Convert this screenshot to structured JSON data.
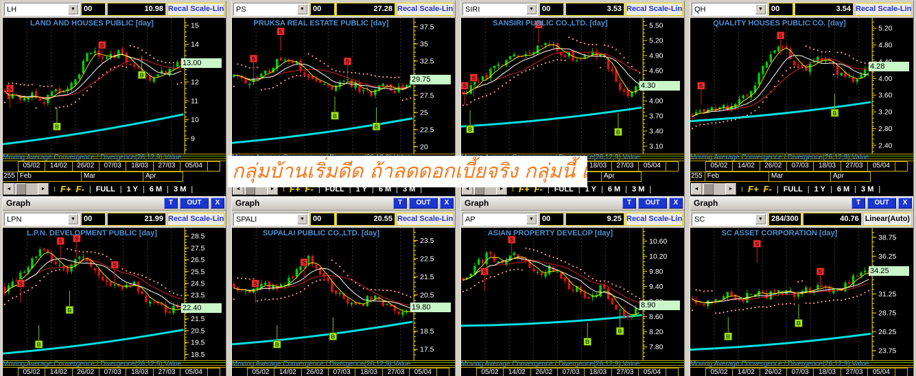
{
  "overlay": {
    "text": "กลุ่มบ้านเริ่มดีด ถ้าลดดอกเบี้ยจริง กลุ่มนี้ เฮเลย"
  },
  "common": {
    "window_title": "Graph",
    "titlebar_buttons": {
      "t": "T",
      "out": "OUT",
      "x": "X"
    },
    "macd_label": "Moving Average Convergence / Divergence(26,12,9),Value",
    "dates": [
      "05/02",
      "14/02",
      "26/02",
      "07/03",
      "18/03",
      "27/03",
      "05/04"
    ],
    "year_label": "255",
    "months": [
      "Feb",
      "Mar",
      "Apr"
    ],
    "fplus": "F+",
    "fminus": "F-",
    "range_buttons": [
      "FULL",
      "1 Y",
      "6 M",
      "3 M"
    ],
    "scroll_left": "◄",
    "scroll_right": "►"
  },
  "colors": {
    "title_blue": "#4a8fd0",
    "link_blue": "#2233cc",
    "price_tag_bg": "#c9f7c9",
    "candle_up": "#00d000",
    "candle_down": "#e01010",
    "ma_white": "#ffffff",
    "ma_yellow": "#e8e800",
    "ma_red": "#d02020",
    "ma_cyan": "#00e0e0",
    "sar_pink": "#ff9595",
    "sell_red": "#e83030",
    "buy_green": "#a6e619",
    "axis_yellow": "#ffe000",
    "overlay_orange": "#f5791e"
  },
  "panels": [
    {
      "symbol": "LH",
      "vol": "00",
      "price": "10.98",
      "scale": "Recal Scale-Linear",
      "scale_link": true,
      "title": "LAND AND HOUSES PUBLIC [day]",
      "y_ticks": [
        "15",
        "14",
        "13",
        "12",
        "11",
        "10",
        "9"
      ],
      "ymin": 8.2,
      "ymax": 15.4,
      "last_label": "13.00",
      "last_value": 13.0,
      "trend": [
        11.4,
        11.1,
        11.35,
        11.0,
        11.45,
        11.7,
        12.7,
        13.9,
        13.1,
        13.6,
        12.8,
        12.35,
        12.2,
        12.75,
        13.0
      ],
      "cyan": [
        0.93,
        0.71
      ],
      "markers": [
        {
          "t": "S",
          "x": 0.04,
          "y": 0.52
        },
        {
          "t": "S",
          "x": 0.55,
          "y": 0.2
        },
        {
          "t": "B",
          "x": 0.3,
          "y": 0.8
        },
        {
          "t": "B",
          "x": 0.77,
          "y": 0.42
        }
      ]
    },
    {
      "symbol": "PS",
      "vol": "00",
      "price": "27.28",
      "scale": "Recal Scale-Linear",
      "scale_link": true,
      "title": "PRUKSA REAL ESTATE PUBLIC [day]",
      "y_ticks": [
        "37.5",
        "35",
        "32.5",
        "30",
        "27.5",
        "25",
        "22.5",
        "20"
      ],
      "ymin": 19.0,
      "ymax": 38.8,
      "last_label": "29.75",
      "last_value": 29.75,
      "trend": [
        30.0,
        29.4,
        30.6,
        31.6,
        33.2,
        31.9,
        30.4,
        29.4,
        28.7,
        29.4,
        28.3,
        27.9,
        28.9,
        28.3,
        29.75
      ],
      "cyan": [
        0.92,
        0.74
      ],
      "markers": [
        {
          "t": "S",
          "x": 0.12,
          "y": 0.3
        },
        {
          "t": "S",
          "x": 0.27,
          "y": 0.1
        },
        {
          "t": "S",
          "x": 0.64,
          "y": 0.32
        },
        {
          "t": "B",
          "x": 0.57,
          "y": 0.72
        },
        {
          "t": "B",
          "x": 0.8,
          "y": 0.8
        }
      ]
    },
    {
      "symbol": "SIRI",
      "vol": "00",
      "price": "3.53",
      "scale": "Recal Scale-Linear",
      "scale_link": true,
      "title": "SANSIRI PUBLIC CO.,LTD. [day]",
      "y_ticks": [
        "5.50",
        "5.20",
        "4.90",
        "4.60",
        "4.00",
        "3.70",
        "3.40",
        "3.10"
      ],
      "ymin": 2.95,
      "ymax": 5.65,
      "last_label": "4.30",
      "last_value": 4.3,
      "trend": [
        4.15,
        4.3,
        4.5,
        4.68,
        4.82,
        4.92,
        5.02,
        5.1,
        5.02,
        4.9,
        4.78,
        4.95,
        4.85,
        4.35,
        4.1,
        4.3
      ],
      "cyan": [
        0.8,
        0.66
      ],
      "markers": [
        {
          "t": "S",
          "x": 0.02,
          "y": 0.5
        },
        {
          "t": "S",
          "x": 0.07,
          "y": 0.44
        },
        {
          "t": "S",
          "x": 0.43,
          "y": 0.05
        },
        {
          "t": "B",
          "x": 0.05,
          "y": 0.82
        },
        {
          "t": "B",
          "x": 0.87,
          "y": 0.84
        }
      ]
    },
    {
      "symbol": "QH",
      "vol": "00",
      "price": "3.54",
      "scale": "Recal Scale-Linear",
      "scale_link": true,
      "title": "QUALITY HOUSES PUBLIC CO. [day]",
      "y_ticks": [
        "5.20",
        "4.80",
        "4.40",
        "4.00",
        "3.60",
        "3.20",
        "2.80",
        "2.40"
      ],
      "ymin": 2.2,
      "ymax": 5.45,
      "last_label": "4.28",
      "last_value": 4.28,
      "trend": [
        3.1,
        3.2,
        3.28,
        3.35,
        3.5,
        3.9,
        4.5,
        4.85,
        4.4,
        4.25,
        4.5,
        4.32,
        3.98,
        3.9,
        4.28
      ],
      "cyan": [
        0.76,
        0.62
      ],
      "markers": [
        {
          "t": "S",
          "x": 0.06,
          "y": 0.5
        },
        {
          "t": "S",
          "x": 0.5,
          "y": 0.13
        },
        {
          "t": "B",
          "x": 0.8,
          "y": 0.7
        }
      ]
    },
    {
      "symbol": "LPN",
      "vol": "00",
      "price": "21.99",
      "scale": "Recal Scale-Linear",
      "scale_link": true,
      "title": "L.P.N. DEVELOPMENT PUBLIC [day]",
      "y_ticks": [
        "28.5",
        "27.5",
        "26.5",
        "25.5",
        "24.5",
        "23.5",
        "22.5",
        "21.5",
        "20.5",
        "19.5",
        "18.5"
      ],
      "ymin": 18.0,
      "ymax": 29.2,
      "last_label": "22.40",
      "last_value": 22.4,
      "trend": [
        24.0,
        24.9,
        26.2,
        27.4,
        26.1,
        25.3,
        26.9,
        25.7,
        24.5,
        24.0,
        24.7,
        23.3,
        22.7,
        22.2,
        22.4
      ],
      "cyan": [
        0.95,
        0.77
      ],
      "markers": [
        {
          "t": "S",
          "x": 0.1,
          "y": 0.42
        },
        {
          "t": "S",
          "x": 0.32,
          "y": 0.1
        },
        {
          "t": "S",
          "x": 0.41,
          "y": 0.08
        },
        {
          "t": "S",
          "x": 0.62,
          "y": 0.28
        },
        {
          "t": "B",
          "x": 0.2,
          "y": 0.88
        },
        {
          "t": "B",
          "x": 0.37,
          "y": 0.62
        }
      ]
    },
    {
      "symbol": "SPALI",
      "vol": "00",
      "price": "20.55",
      "scale": "Recal Scale-Linear",
      "scale_link": true,
      "title": "SUPALAI PUBLIC CO.,LTD. [day]",
      "y_ticks": [
        "23.5",
        "22.5",
        "21.5",
        "20.5",
        "18.5",
        "17.5"
      ],
      "ymin": 16.9,
      "ymax": 24.2,
      "last_label": "19.80",
      "last_value": 19.8,
      "trend": [
        21.0,
        20.7,
        21.2,
        20.8,
        21.1,
        21.9,
        22.5,
        21.5,
        20.7,
        20.2,
        19.9,
        20.5,
        19.9,
        19.55,
        19.8
      ],
      "cyan": [
        0.88,
        0.71
      ],
      "markers": [
        {
          "t": "S",
          "x": 0.13,
          "y": 0.42
        },
        {
          "t": "S",
          "x": 0.4,
          "y": 0.26
        },
        {
          "t": "B",
          "x": 0.25,
          "y": 0.88
        },
        {
          "t": "B",
          "x": 0.56,
          "y": 0.82
        }
      ]
    },
    {
      "symbol": "AP",
      "vol": "00",
      "price": "9.25",
      "scale": "Recal Scale-Linear",
      "scale_link": true,
      "title": "ASIAN PROPERTY DEVELOP [day]",
      "y_ticks": [
        "10.60",
        "10.20",
        "9.80",
        "9.40",
        "9.00",
        "8.60",
        "8.20",
        "7.80"
      ],
      "ymin": 7.45,
      "ymax": 10.95,
      "last_label": "8.90",
      "last_value": 8.9,
      "trend": [
        9.6,
        9.95,
        10.25,
        9.9,
        10.3,
        10.0,
        9.7,
        9.95,
        9.5,
        9.3,
        9.1,
        9.35,
        8.8,
        8.6,
        8.9
      ],
      "cyan": [
        0.74,
        0.66
      ],
      "markers": [
        {
          "t": "S",
          "x": 0.13,
          "y": 0.33
        },
        {
          "t": "S",
          "x": 0.28,
          "y": 0.09
        },
        {
          "t": "B",
          "x": 0.7,
          "y": 0.86
        },
        {
          "t": "B",
          "x": 0.88,
          "y": 0.78
        }
      ]
    },
    {
      "symbol": "SC",
      "vol": "284/300",
      "price": "40.76",
      "scale": "Linear(Auto)",
      "scale_link": false,
      "title": "SC ASSET CORPORATION [day]",
      "y_ticks": [
        "38.75",
        "36.25",
        "31.25",
        "28.75",
        "26.25",
        "23.75"
      ],
      "ymin": 22.5,
      "ymax": 40.0,
      "last_label": "34.25",
      "last_value": 34.25,
      "trend": [
        30.4,
        30.1,
        30.8,
        31.2,
        30.7,
        31.4,
        31.0,
        31.6,
        31.2,
        31.8,
        32.3,
        31.8,
        32.3,
        33.8,
        34.25
      ],
      "cyan": [
        0.92,
        0.8
      ],
      "markers": [
        {
          "t": "S",
          "x": 0.37,
          "y": 0.12
        },
        {
          "t": "S",
          "x": 0.72,
          "y": 0.33
        },
        {
          "t": "B",
          "x": 0.21,
          "y": 0.82
        },
        {
          "t": "B",
          "x": 0.6,
          "y": 0.72
        }
      ]
    }
  ]
}
